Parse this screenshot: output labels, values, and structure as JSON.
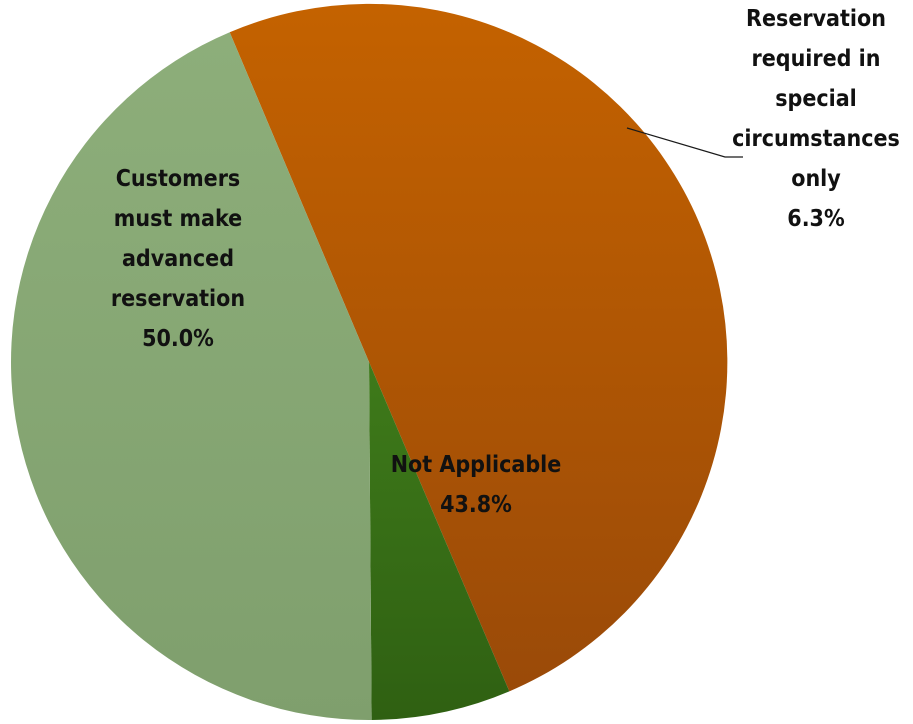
{
  "chart_data": {
    "type": "pie",
    "slices": [
      {
        "label_lines": [
          "Customers",
          "must make",
          "advanced",
          "reservation"
        ],
        "percent_text": "50.0%",
        "value": 50.0,
        "color": "#C46200",
        "color_dark": "#9A4A08"
      },
      {
        "label_lines": [
          "Reservation",
          "required in",
          "special",
          "circumstances",
          "only"
        ],
        "percent_text": "6.3%",
        "value": 6.3,
        "color": "#3E7A1A",
        "color_dark": "#2F6012"
      },
      {
        "label_lines": [
          "Not Applicable"
        ],
        "percent_text": "43.8%",
        "value": 43.8,
        "color": "#8DAE7A",
        "color_dark": "#7F9F6D"
      }
    ],
    "legend": "none",
    "labels": "data labels on slices"
  }
}
